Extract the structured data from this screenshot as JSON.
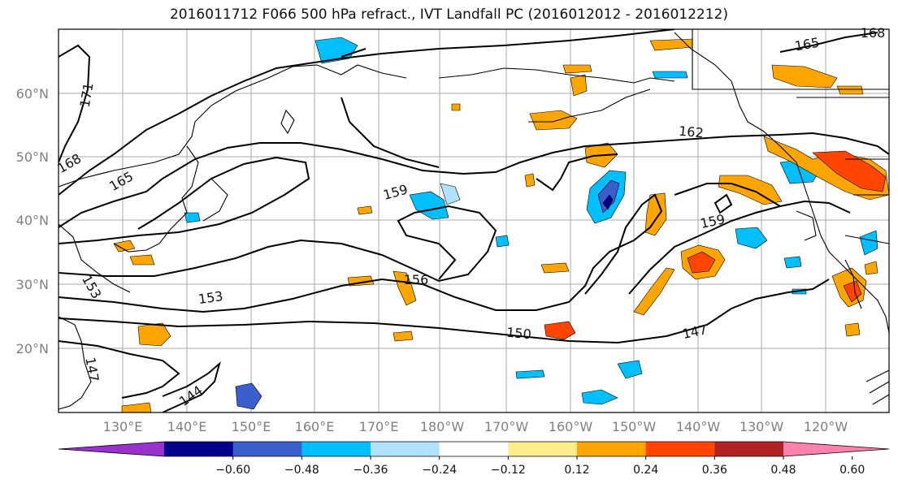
{
  "title": "2016011712 F066 500 hPa refract., IVT Landfall PC (2016012012 - 2016012212)",
  "map": {
    "lat_labels": [
      "20°N",
      "30°N",
      "40°N",
      "50°N",
      "60°N"
    ],
    "lon_labels": [
      "130°E",
      "140°E",
      "150°E",
      "160°E",
      "170°E",
      "180°W",
      "170°W",
      "160°W",
      "150°W",
      "140°W",
      "130°W",
      "120°W"
    ],
    "contour_labels": [
      "171",
      "168",
      "165",
      "159",
      "153",
      "156",
      "153",
      "150",
      "147",
      "144",
      "147",
      "159",
      "162",
      "165",
      "168"
    ]
  },
  "colorbar": {
    "ticks": [
      "−0.60",
      "−0.48",
      "−0.36",
      "−0.24",
      "−0.12",
      "0.12",
      "0.24",
      "0.36",
      "0.48",
      "0.60"
    ],
    "colors": [
      "#9932CC",
      "#00008B",
      "#3A5FCD",
      "#00BFFF",
      "#B0E2FF",
      "#FFFFFF",
      "#FFEC8B",
      "#FFA500",
      "#FF4500",
      "#B22222",
      "#FF82AB"
    ]
  }
}
